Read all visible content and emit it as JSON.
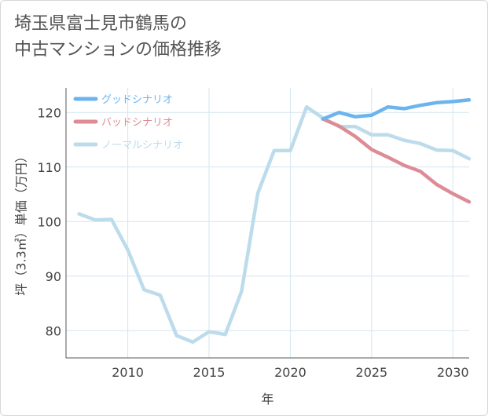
{
  "title": {
    "line1": "埼玉県富士見市鶴馬の",
    "line2": "中古マンションの価格推移"
  },
  "chart_data": {
    "type": "line",
    "title": "埼玉県富士見市鶴馬の中古マンションの価格推移",
    "xlabel": "年",
    "ylabel": "坪（3.3㎡）単価（万円）",
    "xlim": [
      2006.2,
      2031
    ],
    "ylim": [
      75,
      124.5
    ],
    "x_ticks": [
      2010,
      2015,
      2020,
      2025,
      2030
    ],
    "y_ticks": [
      80,
      90,
      100,
      110,
      120
    ],
    "grid": true,
    "legend_position": "top-left",
    "series": [
      {
        "name": "グッドシナリオ",
        "color": "#6cb4ee",
        "x": [
          2022,
          2023,
          2024,
          2025,
          2026,
          2027,
          2028,
          2029,
          2030,
          2031
        ],
        "values": [
          118.8,
          120.0,
          119.2,
          119.5,
          121.0,
          120.7,
          121.3,
          121.8,
          122.0,
          122.3
        ]
      },
      {
        "name": "バッドシナリオ",
        "color": "#dd8c96",
        "x": [
          2022,
          2023,
          2024,
          2025,
          2026,
          2027,
          2028,
          2029,
          2030,
          2031
        ],
        "values": [
          118.8,
          117.5,
          115.6,
          113.2,
          111.8,
          110.3,
          109.2,
          106.8,
          105.1,
          103.6
        ]
      },
      {
        "name": "ノーマルシナリオ",
        "color": "#bcdcec",
        "x": [
          2007,
          2008,
          2009,
          2010,
          2011,
          2012,
          2013,
          2014,
          2015,
          2016,
          2017,
          2018,
          2019,
          2020,
          2021,
          2022,
          2023,
          2024,
          2025,
          2026,
          2027,
          2028,
          2029,
          2030,
          2031
        ],
        "values": [
          101.4,
          100.3,
          100.4,
          94.8,
          87.5,
          86.5,
          79.1,
          77.9,
          79.8,
          79.3,
          87.2,
          105.2,
          113.0,
          113.0,
          121.0,
          119.0,
          117.4,
          117.4,
          115.9,
          115.9,
          114.9,
          114.3,
          113.1,
          113.0,
          111.5
        ]
      }
    ]
  }
}
